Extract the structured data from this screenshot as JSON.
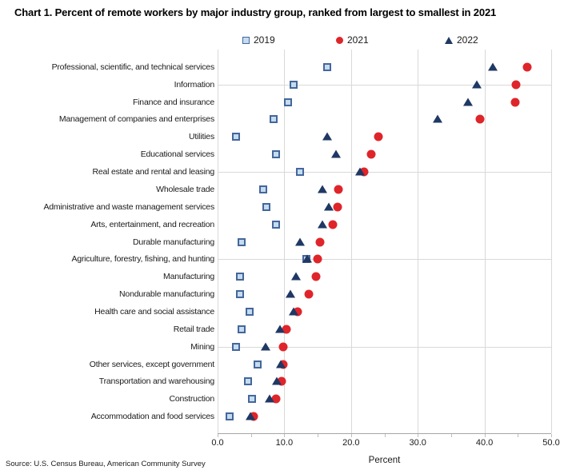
{
  "title": "Chart 1. Percent of remote workers by major industry group, ranked from largest to smallest in 2021",
  "source": "Source: U.S. Census Bureau, American Community Survey",
  "colors": {
    "background": "#ffffff",
    "gridline": "#d9d9d9",
    "axis_line": "#a6a6a6",
    "tick": "#bfbfbf",
    "text": "#1a1a1a",
    "series_2019_fill": "#c5dbef",
    "series_2019_border": "#44679b",
    "series_2021": "#df252a",
    "series_2022": "#1f3864"
  },
  "chart_data": {
    "type": "scatter",
    "title": "Chart 1. Percent of remote workers by major industry group, ranked from largest to smallest in 2021",
    "xlabel": "Percent",
    "ylabel": "",
    "xlim": [
      0,
      50
    ],
    "x_major_ticks": [
      0,
      10,
      20,
      30,
      40,
      50
    ],
    "x_tick_labels": [
      "0.0",
      "10.0",
      "20.0",
      "30.0",
      "40.0",
      "50.0"
    ],
    "x_minor_step": 5,
    "y_gridlines_every": 5,
    "grid": "vertical major gridlines on; horizontal gridlines every 5 categories",
    "legend_position": "top",
    "categories": [
      "Professional, scientific, and technical services",
      "Information",
      "Finance and insurance",
      "Management of companies and enterprises",
      "Utilities",
      "Educational services",
      "Real estate and rental and leasing",
      "Wholesale trade",
      "Administrative and waste management services",
      "Arts, entertainment, and recreation",
      "Durable manufacturing",
      "Agriculture, forestry, fishing, and hunting",
      "Manufacturing",
      "Nondurable manufacturing",
      "Health care and social assistance",
      "Retail trade",
      "Mining",
      "Other services, except government",
      "Transportation and warehousing",
      "Construction",
      "Accommodation and food services"
    ],
    "series": [
      {
        "name": "2019",
        "marker": "square",
        "fill": "#c5dbef",
        "border": "#44679b",
        "values": [
          16.4,
          11.4,
          10.5,
          8.4,
          2.8,
          8.8,
          12.4,
          6.8,
          7.3,
          8.7,
          3.6,
          13.3,
          3.4,
          3.3,
          4.8,
          3.6,
          2.7,
          6.0,
          4.5,
          5.1,
          1.8
        ]
      },
      {
        "name": "2021",
        "marker": "circle",
        "color": "#df252a",
        "values": [
          46.4,
          44.7,
          44.6,
          39.3,
          24.1,
          23.0,
          21.9,
          18.1,
          18.0,
          17.3,
          15.3,
          15.0,
          14.7,
          13.7,
          12.0,
          10.3,
          9.8,
          9.8,
          9.6,
          8.8,
          5.4
        ]
      },
      {
        "name": "2022",
        "marker": "triangle",
        "color": "#1f3864",
        "values": [
          41.3,
          38.8,
          37.5,
          33.0,
          16.4,
          17.8,
          21.3,
          15.7,
          16.7,
          15.7,
          12.4,
          13.4,
          11.8,
          10.9,
          11.4,
          9.4,
          7.2,
          9.5,
          8.9,
          7.8,
          4.9
        ]
      }
    ]
  }
}
